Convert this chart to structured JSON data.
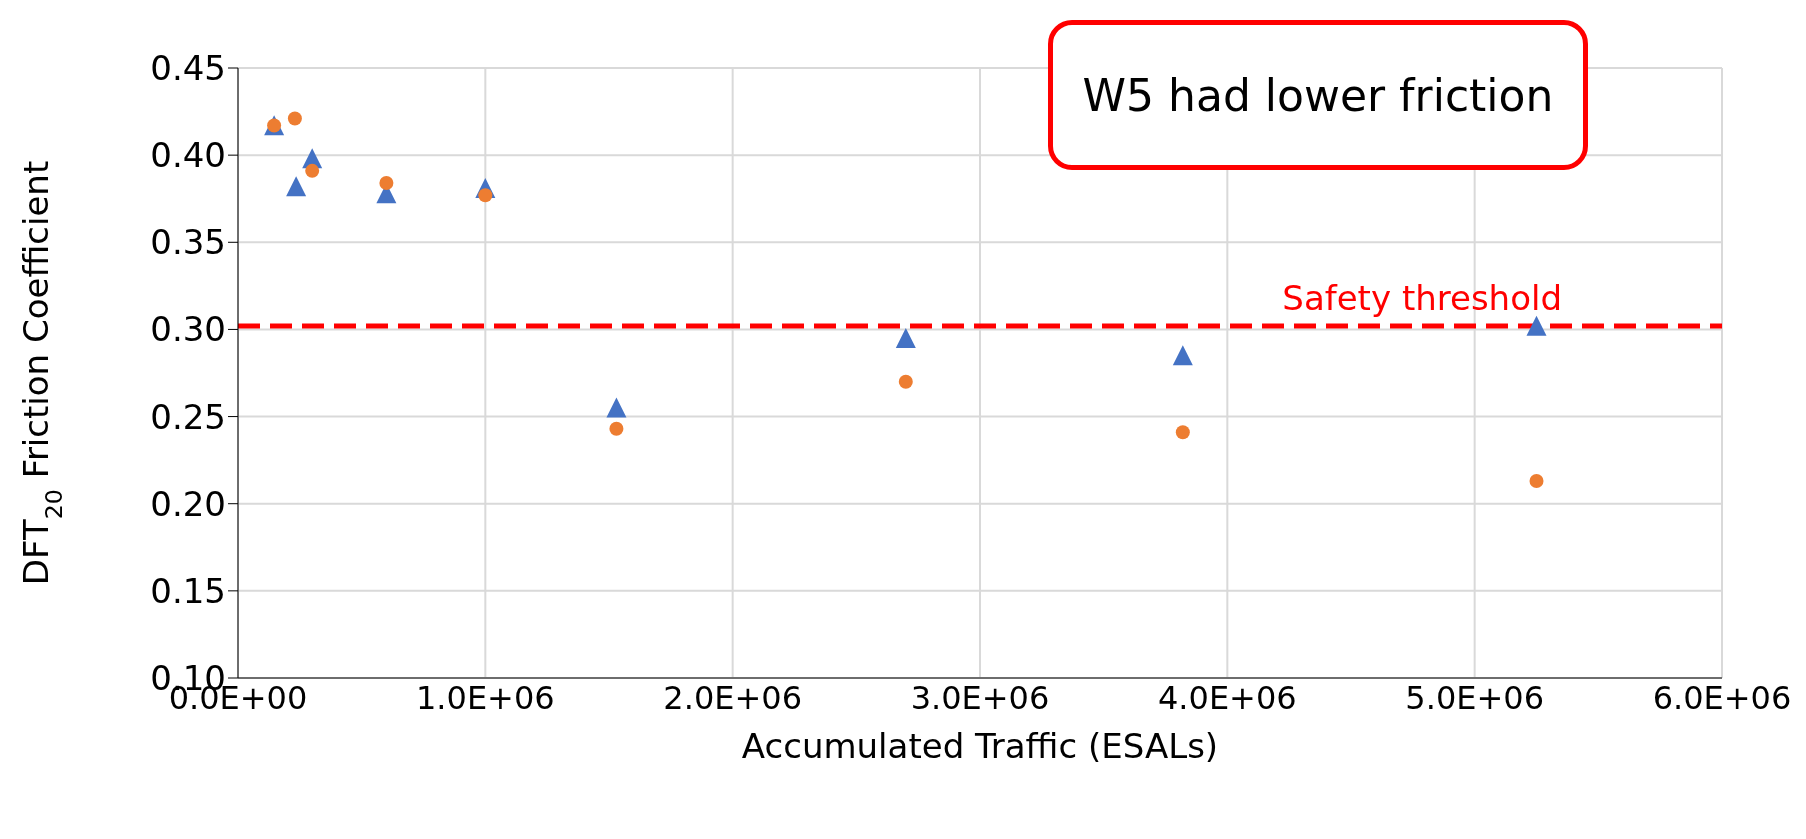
{
  "chart_data": {
    "type": "scatter",
    "xlabel": "Accumulated Traffic (ESALs)",
    "ylabel": "DFT$_{20}$ Friction Coefficient",
    "annotations": [
      "W5 had lower friction"
    ],
    "xlim": [
      0,
      6000000
    ],
    "xticks": [
      {
        "value": 0,
        "label": "0.0E+00"
      },
      {
        "value": 1000000,
        "label": "1.0E+06"
      },
      {
        "value": 2000000,
        "label": "2.0E+06"
      },
      {
        "value": 3000000,
        "label": "3.0E+06"
      },
      {
        "value": 4000000,
        "label": "4.0E+06"
      },
      {
        "value": 5000000,
        "label": "5.0E+06"
      },
      {
        "value": 6000000,
        "label": "6.0E+06"
      }
    ],
    "ylim": [
      0.1,
      0.45
    ],
    "yticks": [
      {
        "value": 0.1,
        "label": "0.10"
      },
      {
        "value": 0.15,
        "label": "0.15"
      },
      {
        "value": 0.2,
        "label": "0.20"
      },
      {
        "value": 0.25,
        "label": "0.25"
      },
      {
        "value": 0.3,
        "label": "0.30"
      },
      {
        "value": 0.35,
        "label": "0.35"
      },
      {
        "value": 0.4,
        "label": "0.40"
      },
      {
        "value": 0.45,
        "label": "0.45"
      }
    ],
    "grid": true,
    "legend": false,
    "ref_lines": [
      {
        "axis": "y",
        "value": 0.302,
        "label": "Safety threshold",
        "color": "#ff0000",
        "line_style": "dashed"
      }
    ],
    "series": [
      {
        "color": "#4472c4",
        "marker": "triangle",
        "x": [
          146000,
          235000,
          300000,
          600000,
          1000000,
          1530000,
          2700000,
          3820000,
          5250000
        ],
        "values": [
          0.416,
          0.381,
          0.397,
          0.377,
          0.38,
          0.254,
          0.294,
          0.284,
          0.301
        ]
      },
      {
        "color": "#ed7d31",
        "marker": "circle",
        "x": [
          146000,
          230000,
          300000,
          600000,
          1000000,
          1530000,
          2700000,
          3820000,
          5250000
        ],
        "values": [
          0.417,
          0.421,
          0.391,
          0.384,
          0.377,
          0.243,
          0.27,
          0.241,
          0.213
        ]
      }
    ]
  }
}
